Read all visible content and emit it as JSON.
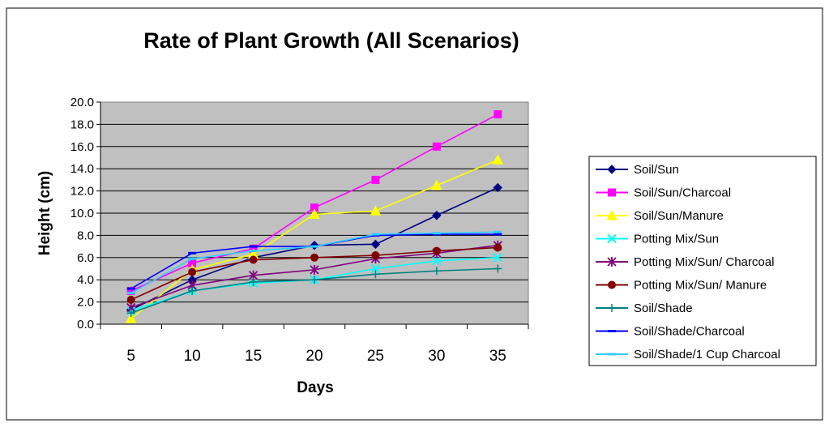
{
  "chart_data": {
    "type": "line",
    "title": "Rate of Plant Growth (All Scenarios)",
    "xlabel": "Days",
    "ylabel": "Height (cm)",
    "categories": [
      "5",
      "10",
      "15",
      "20",
      "25",
      "30",
      "35"
    ],
    "y_ticks": [
      "0.0",
      "2.0",
      "4.0",
      "6.0",
      "8.0",
      "10.0",
      "12.0",
      "14.0",
      "16.0",
      "18.0",
      "20.0"
    ],
    "ylim": [
      0,
      20
    ],
    "grid": true,
    "plot_background": "#c0c0c0",
    "legend_position": "right",
    "series": [
      {
        "name": "Soil/Sun",
        "color": "#000080",
        "marker": "diamond",
        "values": [
          1.3,
          4.0,
          6.0,
          7.1,
          7.2,
          9.8,
          12.3
        ]
      },
      {
        "name": "Soil/Sun/Charcoal",
        "color": "#ff00ff",
        "marker": "square",
        "values": [
          3.0,
          5.5,
          6.8,
          10.5,
          13.0,
          16.0,
          18.9
        ]
      },
      {
        "name": "Soil/Sun/Manure",
        "color": "#ffff00",
        "marker": "triangle",
        "values": [
          0.5,
          4.9,
          6.3,
          9.9,
          10.2,
          12.5,
          14.8
        ]
      },
      {
        "name": "Potting Mix/Sun",
        "color": "#00ffff",
        "marker": "x",
        "values": [
          1.2,
          3.0,
          3.7,
          4.0,
          5.0,
          5.7,
          6.0
        ]
      },
      {
        "name": "Potting Mix/Sun/ Charcoal",
        "color": "#800080",
        "marker": "star",
        "values": [
          1.5,
          3.5,
          4.4,
          4.9,
          5.9,
          6.4,
          7.1
        ]
      },
      {
        "name": "Potting Mix/Sun/ Manure",
        "color": "#800000",
        "marker": "circle",
        "values": [
          2.2,
          4.7,
          5.8,
          6.0,
          6.2,
          6.6,
          6.9
        ]
      },
      {
        "name": "Soil/Shade",
        "color": "#008080",
        "marker": "plus",
        "values": [
          1.0,
          3.0,
          3.8,
          4.0,
          4.5,
          4.8,
          5.0
        ]
      },
      {
        "name": "Soil/Shade/Charcoal",
        "color": "#0000ff",
        "marker": "dash",
        "values": [
          3.2,
          6.4,
          7.0,
          7.0,
          8.0,
          8.1,
          8.1
        ]
      },
      {
        "name": "Soil/Shade/1 Cup Charcoal",
        "color": "#33ccff",
        "marker": "dash",
        "values": [
          2.8,
          5.9,
          6.6,
          7.0,
          8.1,
          8.2,
          8.3
        ]
      }
    ]
  }
}
